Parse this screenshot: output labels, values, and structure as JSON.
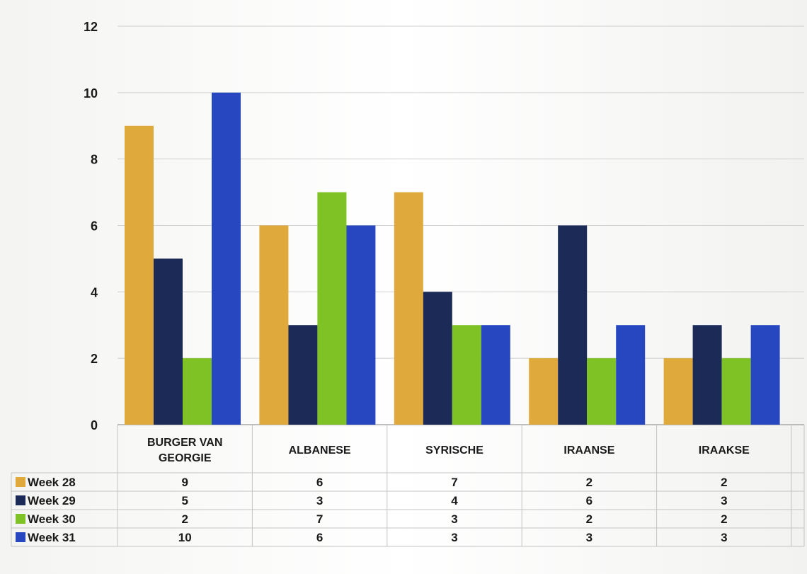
{
  "chart_data": {
    "type": "bar",
    "categories": [
      [
        "BURGER VAN",
        "GEORGIE"
      ],
      [
        "ALBANESE"
      ],
      [
        "SYRISCHE"
      ],
      [
        "IRAANSE"
      ],
      [
        "IRAAKSE"
      ]
    ],
    "series": [
      {
        "name": "Week 28",
        "color": "#e0a93b",
        "values": [
          9,
          6,
          7,
          2,
          2
        ]
      },
      {
        "name": "Week 29",
        "color": "#1b2a57",
        "values": [
          5,
          3,
          4,
          6,
          3
        ]
      },
      {
        "name": "Week 30",
        "color": "#7ec226",
        "values": [
          2,
          7,
          3,
          2,
          2
        ]
      },
      {
        "name": "Week 31",
        "color": "#2747c0",
        "values": [
          10,
          6,
          3,
          3,
          3
        ]
      }
    ],
    "ylim": [
      0,
      12
    ],
    "yticks": [
      0,
      2,
      4,
      6,
      8,
      10,
      12
    ],
    "grid": true,
    "legend": "data-table-left",
    "title": "",
    "xlabel": "",
    "ylabel": ""
  }
}
